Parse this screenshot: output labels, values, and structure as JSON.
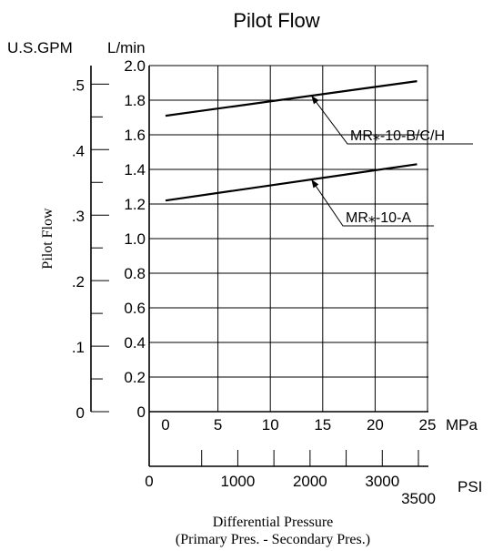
{
  "chart_data": {
    "type": "line",
    "title": "Pilot Flow",
    "ylabel": "Pilot Flow",
    "y_unit_left": "U.S.GPM",
    "y_unit_right": "L/min",
    "y_ticks_gpm": [
      ".5",
      ".4",
      ".3",
      ".2",
      ".1",
      "0"
    ],
    "y_ticks_lmin": [
      "2.0",
      "1.8",
      "1.6",
      "1.4",
      "1.2",
      "1.0",
      "0.8",
      "0.6",
      "0.4",
      "0.2",
      "0"
    ],
    "ylim": [
      0,
      2.0
    ],
    "x_ticks_mpa": [
      "0",
      "5",
      "10",
      "15",
      "20",
      "25"
    ],
    "x_unit_mpa": "MPa",
    "x_ticks_psi": [
      "0",
      "1000",
      "2000",
      "3000",
      "3500"
    ],
    "x_unit_psi": "PSI",
    "xlim": [
      0,
      25
    ],
    "xlabel_line1": "Differential Pressure",
    "xlabel_line2": "(Primary Pres. - Secondary Pres.)",
    "grid": true,
    "series": [
      {
        "name": "MR⁎-10-B/C/H",
        "x": [
          0,
          24
        ],
        "values": [
          1.71,
          1.91
        ]
      },
      {
        "name": "MR⁎-10-A",
        "x": [
          0,
          24
        ],
        "values": [
          1.22,
          1.43
        ]
      }
    ]
  }
}
